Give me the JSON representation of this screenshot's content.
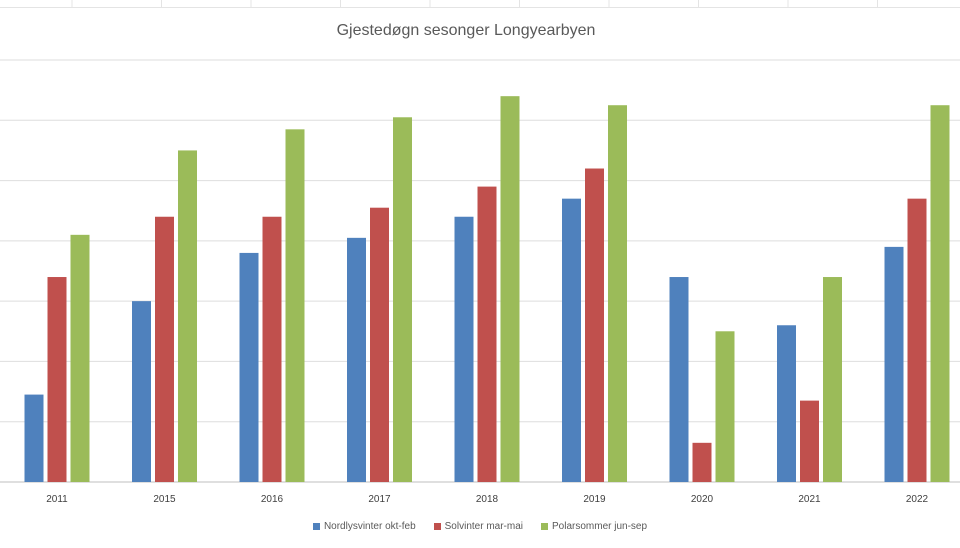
{
  "chart_data": {
    "type": "bar",
    "title": "Gjestedøgn sesonger Longyearbyen",
    "xlabel": "",
    "ylabel": "",
    "categories": [
      "2011",
      "2015",
      "2016",
      "2017",
      "2018",
      "2019",
      "2020",
      "2021",
      "2022"
    ],
    "series": [
      {
        "name": "Nordlysvinter okt-feb",
        "color": "#4F81BD",
        "values": [
          14.5,
          30,
          38,
          40.5,
          44,
          47,
          34,
          26,
          39
        ]
      },
      {
        "name": "Solvinter mar-mai",
        "color": "#C0504D",
        "values": [
          34,
          44,
          44,
          45.5,
          49,
          52,
          6.5,
          13.5,
          47
        ]
      },
      {
        "name": "Polarsommer jun-sep",
        "color": "#9BBB59",
        "values": [
          41,
          55,
          58.5,
          60.5,
          64,
          62.5,
          25,
          34,
          62.5
        ]
      }
    ],
    "ylim": [
      0,
      70
    ],
    "gridlines": [
      10,
      20,
      30,
      40,
      50,
      60,
      70
    ],
    "y_tick_labels_visible": false,
    "grid": true,
    "legend_position": "bottom"
  }
}
